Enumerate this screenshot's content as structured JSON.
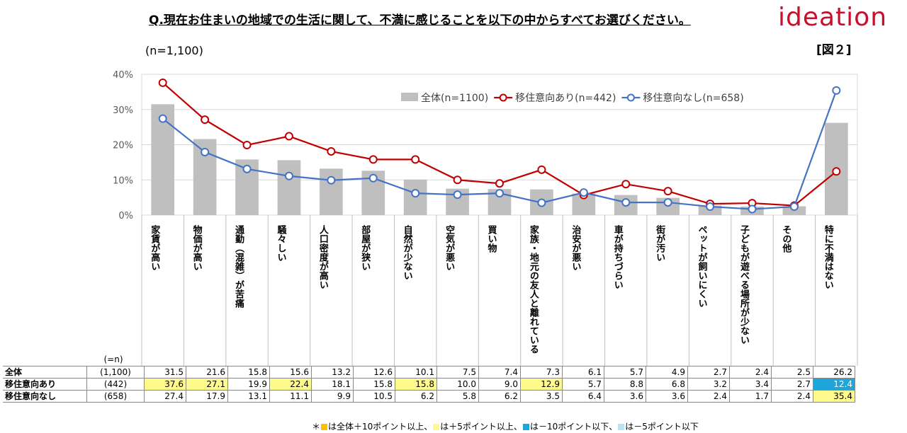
{
  "header": {
    "title": "Q.現在お住まいの地域での生活に関して、不満に感じることを以下の中からすべてお選びください。",
    "brand": "ideation",
    "figure_label": "[図２]",
    "n_label": "(n=1,100)"
  },
  "chart_data": {
    "type": "bar",
    "categories": [
      "家賃が高い",
      "物価が高い",
      "通勤（混雑）が苦痛",
      "騒々しい",
      "人口密度が高い",
      "部屋が狭い",
      "自然が少ない",
      "空気が悪い",
      "買い物",
      "家族・地元の友人と離れている",
      "治安が悪い",
      "車が持ちづらい",
      "街が汚い",
      "ペットが飼いにくい",
      "子どもが遊べる場所が少ない",
      "その他",
      "特に不満はない"
    ],
    "series": [
      {
        "name": "全体(n=1100)",
        "kind": "bar",
        "color": "#bfbfbf",
        "values": [
          31.5,
          21.6,
          15.8,
          15.6,
          13.2,
          12.6,
          10.1,
          7.5,
          7.4,
          7.3,
          6.1,
          5.7,
          4.9,
          2.7,
          2.4,
          2.5,
          26.2
        ]
      },
      {
        "name": "移住意向あり(n=442)",
        "kind": "line",
        "color": "#c00000",
        "values": [
          37.6,
          27.1,
          19.9,
          22.4,
          18.1,
          15.8,
          15.8,
          10.0,
          9.0,
          12.9,
          5.7,
          8.8,
          6.8,
          3.2,
          3.4,
          2.7,
          12.4
        ]
      },
      {
        "name": "移住意向なし(n=658)",
        "kind": "line",
        "color": "#4472c4",
        "values": [
          27.4,
          17.9,
          13.1,
          11.1,
          9.9,
          10.5,
          6.2,
          5.8,
          6.2,
          3.5,
          6.4,
          3.6,
          3.6,
          2.4,
          1.7,
          2.4,
          35.4
        ]
      }
    ],
    "y_ticks": [
      "0%",
      "10%",
      "20%",
      "30%",
      "40%"
    ],
    "ylim": [
      0,
      40
    ],
    "grid": true,
    "legend_position": "top-right"
  },
  "table": {
    "n_header": "(=n)",
    "rows": [
      {
        "label": "全体",
        "n": "(1,100)",
        "values": [
          "31.5",
          "21.6",
          "15.8",
          "15.6",
          "13.2",
          "12.6",
          "10.1",
          "7.5",
          "7.4",
          "7.3",
          "6.1",
          "5.7",
          "4.9",
          "2.7",
          "2.4",
          "2.5",
          "26.2"
        ],
        "hl": [
          "",
          "",
          "",
          "",
          "",
          "",
          "",
          "",
          "",
          "",
          "",
          "",
          "",
          "",
          "",
          "",
          ""
        ]
      },
      {
        "label": "移住意向あり",
        "n": "(442)",
        "values": [
          "37.6",
          "27.1",
          "19.9",
          "22.4",
          "18.1",
          "15.8",
          "15.8",
          "10.0",
          "9.0",
          "12.9",
          "5.7",
          "8.8",
          "6.8",
          "3.2",
          "3.4",
          "2.7",
          "12.4"
        ],
        "hl": [
          "y",
          "y",
          "",
          "y",
          "",
          "",
          "y",
          "",
          "",
          "y",
          "",
          "",
          "",
          "",
          "",
          "",
          "b"
        ]
      },
      {
        "label": "移住意向なし",
        "n": "(658)",
        "values": [
          "27.4",
          "17.9",
          "13.1",
          "11.1",
          "9.9",
          "10.5",
          "6.2",
          "5.8",
          "6.2",
          "3.5",
          "6.4",
          "3.6",
          "3.6",
          "2.4",
          "1.7",
          "2.4",
          "35.4"
        ],
        "hl": [
          "",
          "",
          "",
          "",
          "",
          "",
          "",
          "",
          "",
          "",
          "",
          "",
          "",
          "",
          "",
          "",
          "y"
        ]
      }
    ]
  },
  "footnote": {
    "star": "＊",
    "items": [
      {
        "color": "#ffc000",
        "text": "は全体＋10ポイント以上、"
      },
      {
        "color": "#fffa8c",
        "text": "は＋5ポイント以上、"
      },
      {
        "color": "#1ea5dc",
        "text": "は－10ポイント以下、"
      },
      {
        "color": "#bde3f5",
        "text": "は－5ポイント以下"
      }
    ]
  }
}
